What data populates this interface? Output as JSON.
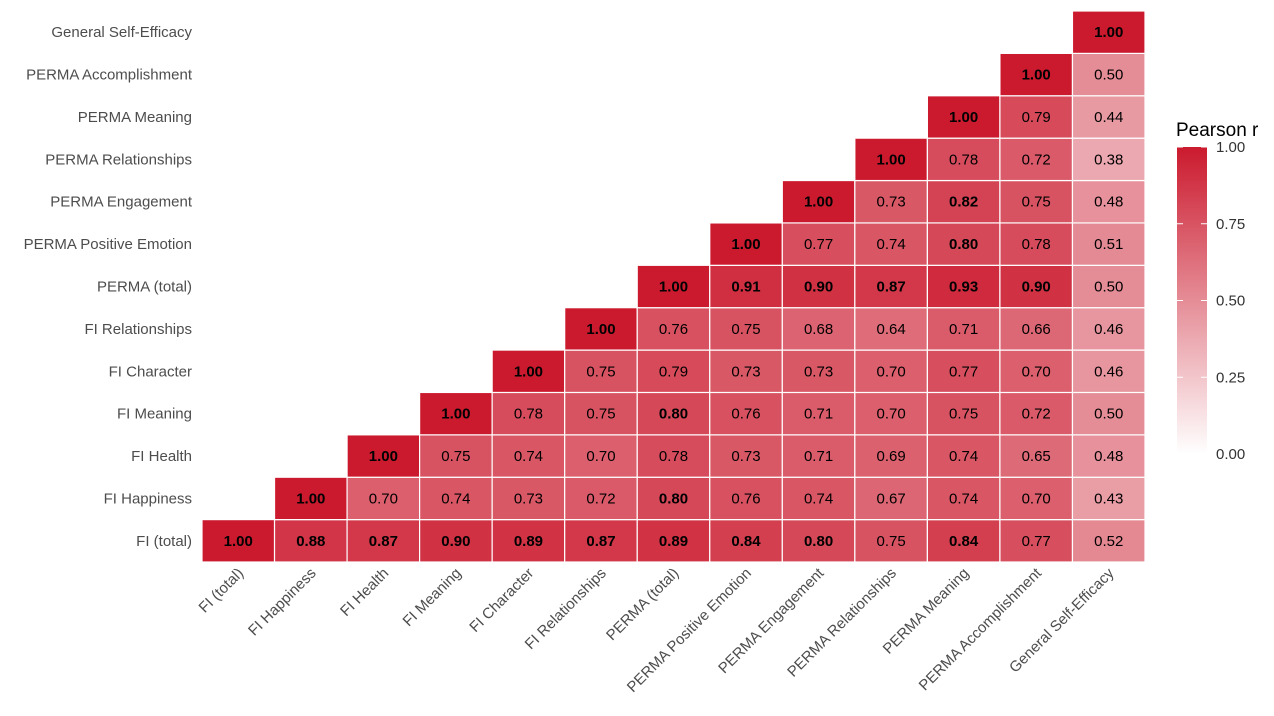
{
  "chart_data": {
    "type": "heatmap",
    "title": "",
    "xlabel": "",
    "ylabel": "",
    "variables": [
      "FI (total)",
      "FI Happiness",
      "FI Health",
      "FI Meaning",
      "FI Character",
      "FI Relationships",
      "PERMA (total)",
      "PERMA Positive Emotion",
      "PERMA Engagement",
      "PERMA Relationships",
      "PERMA Meaning",
      "PERMA Accomplishment",
      "General Self-Efficacy"
    ],
    "matrix": [
      [
        1.0,
        0.88,
        0.87,
        0.9,
        0.89,
        0.87,
        0.89,
        0.84,
        0.8,
        0.75,
        0.84,
        0.77,
        0.52
      ],
      [
        null,
        1.0,
        0.7,
        0.74,
        0.73,
        0.72,
        0.8,
        0.76,
        0.74,
        0.67,
        0.74,
        0.7,
        0.43
      ],
      [
        null,
        null,
        1.0,
        0.75,
        0.74,
        0.7,
        0.78,
        0.73,
        0.71,
        0.69,
        0.74,
        0.65,
        0.48
      ],
      [
        null,
        null,
        null,
        1.0,
        0.78,
        0.75,
        0.8,
        0.76,
        0.71,
        0.7,
        0.75,
        0.72,
        0.5
      ],
      [
        null,
        null,
        null,
        null,
        1.0,
        0.75,
        0.79,
        0.73,
        0.73,
        0.7,
        0.77,
        0.7,
        0.46
      ],
      [
        null,
        null,
        null,
        null,
        null,
        1.0,
        0.76,
        0.75,
        0.68,
        0.64,
        0.71,
        0.66,
        0.46
      ],
      [
        null,
        null,
        null,
        null,
        null,
        null,
        1.0,
        0.91,
        0.9,
        0.87,
        0.93,
        0.9,
        0.5
      ],
      [
        null,
        null,
        null,
        null,
        null,
        null,
        null,
        1.0,
        0.77,
        0.74,
        0.8,
        0.78,
        0.51
      ],
      [
        null,
        null,
        null,
        null,
        null,
        null,
        null,
        null,
        1.0,
        0.73,
        0.82,
        0.75,
        0.48
      ],
      [
        null,
        null,
        null,
        null,
        null,
        null,
        null,
        null,
        null,
        1.0,
        0.78,
        0.72,
        0.38
      ],
      [
        null,
        null,
        null,
        null,
        null,
        null,
        null,
        null,
        null,
        null,
        1.0,
        0.79,
        0.44
      ],
      [
        null,
        null,
        null,
        null,
        null,
        null,
        null,
        null,
        null,
        null,
        null,
        1.0,
        0.5
      ],
      [
        null,
        null,
        null,
        null,
        null,
        null,
        null,
        null,
        null,
        null,
        null,
        null,
        1.0
      ]
    ],
    "bold_threshold": 0.8,
    "value_range": [
      0,
      1
    ],
    "legend": {
      "title": "Pearson r",
      "ticks": [
        "1.00",
        "0.75",
        "0.50",
        "0.25",
        "0.00"
      ],
      "tick_values": [
        1.0,
        0.75,
        0.5,
        0.25,
        0.0
      ],
      "placement": "right"
    },
    "colors": {
      "low": "#ffffff",
      "high": "#cb1a2e",
      "cell_border": "#ffffff"
    }
  }
}
